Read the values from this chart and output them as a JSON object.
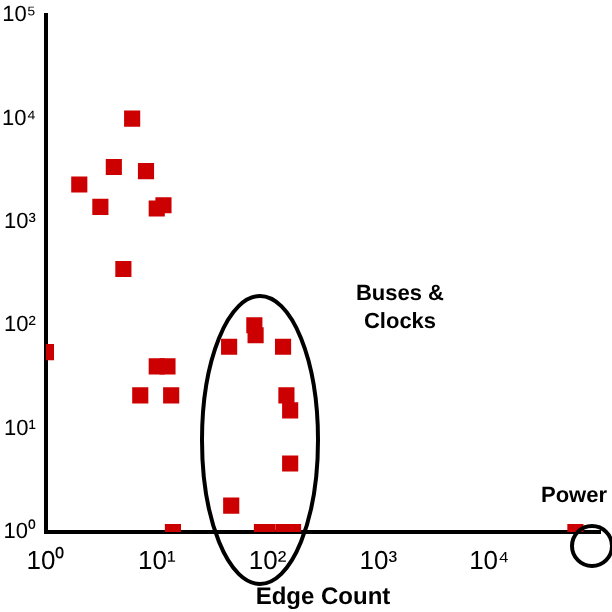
{
  "chart_data": {
    "type": "scatter",
    "xlabel": "Edge Count",
    "log": "xy",
    "grid": false,
    "legend": false,
    "marker": "square",
    "xlim": [
      1,
      100000
    ],
    "ylim": [
      1,
      100000
    ],
    "xticks": [
      {
        "value": 1,
        "label": "10⁰"
      },
      {
        "value": 10,
        "label": "10¹"
      },
      {
        "value": 100,
        "label": "10²"
      },
      {
        "value": 1000,
        "label": "10³"
      },
      {
        "value": 10000,
        "label": "10⁴"
      }
    ],
    "yticks": [
      {
        "value": 1,
        "label": "10⁰"
      },
      {
        "value": 10,
        "label": "10¹"
      },
      {
        "value": 100,
        "label": "10²"
      },
      {
        "value": 1000,
        "label": "10³"
      },
      {
        "value": 10000,
        "label": "10⁴"
      },
      {
        "value": 100000,
        "label": "10⁵"
      }
    ],
    "series": [
      {
        "color": "#cc0000",
        "x": [
          6,
          2,
          3.1,
          4.1,
          8,
          10,
          11.5,
          5,
          1,
          8.7,
          10,
          12.5,
          7.1,
          13.5,
          14,
          45,
          76,
          78,
          138,
          148,
          160,
          160,
          47,
          89,
          100,
          140,
          170,
          60000
        ],
        "values": [
          10000,
          2300,
          1400,
          3400,
          3100,
          1350,
          1450,
          350,
          55,
          null,
          40,
          40,
          21,
          21,
          1,
          62,
          100,
          80,
          62,
          21,
          15,
          4.6,
          1.8,
          1,
          1,
          1,
          1,
          1
        ]
      }
    ],
    "annotations": [
      "Buses &\nClocks",
      "Power"
    ]
  }
}
